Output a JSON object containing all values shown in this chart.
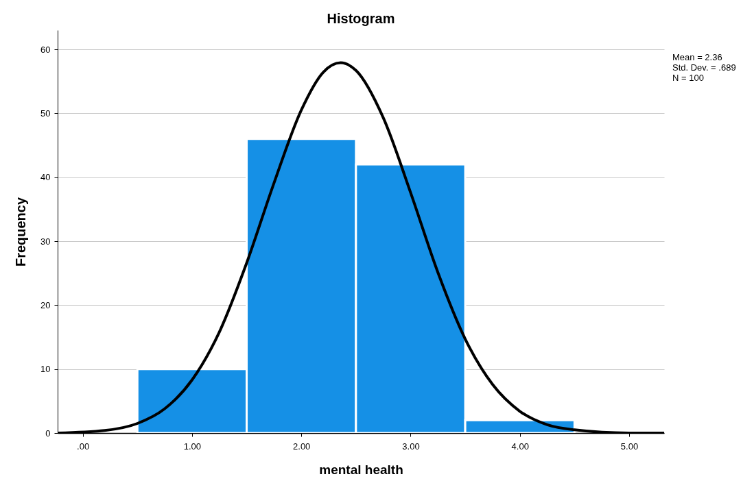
{
  "chart_data": {
    "type": "histogram",
    "title": "Histogram",
    "xlabel": "mental health",
    "ylabel": "Frequency",
    "bins": [
      0.5,
      1.5,
      2.5,
      3.5,
      4.5
    ],
    "values": [
      10,
      46,
      42,
      2
    ],
    "color": "#1590e6",
    "series": [
      {
        "type": "line",
        "color": "#000000",
        "x": [
          -0.23,
          0.2,
          0.5,
          0.75,
          1.0,
          1.25,
          1.5,
          1.75,
          2.0,
          2.2,
          2.36,
          2.5,
          2.75,
          3.0,
          3.25,
          3.5,
          3.75,
          4.0,
          4.25,
          4.5,
          5.0,
          5.32
        ],
        "values": [
          0,
          0.4,
          1.5,
          3.8,
          8.3,
          15.8,
          26.6,
          39.1,
          50.5,
          56.4,
          57.9,
          56.7,
          49.3,
          37.6,
          25.1,
          14.7,
          7.6,
          3.4,
          1.3,
          0.5,
          0,
          0
        ]
      }
    ],
    "xlim": [
      -0.23,
      5.32
    ],
    "xticks": [
      {
        "value": 0,
        "label": ".00"
      },
      {
        "value": 1,
        "label": "1.00"
      },
      {
        "value": 2,
        "label": "2.00"
      },
      {
        "value": 3,
        "label": "3.00"
      },
      {
        "value": 4,
        "label": "4.00"
      },
      {
        "value": 5,
        "label": "5.00"
      }
    ],
    "ylim": [
      0,
      63
    ],
    "yticks": [
      0,
      10,
      20,
      30,
      40,
      50,
      60
    ],
    "grid": "y",
    "annotations": [
      "Mean = 2.36",
      "Std. Dev. = .689",
      "N = 100"
    ]
  }
}
